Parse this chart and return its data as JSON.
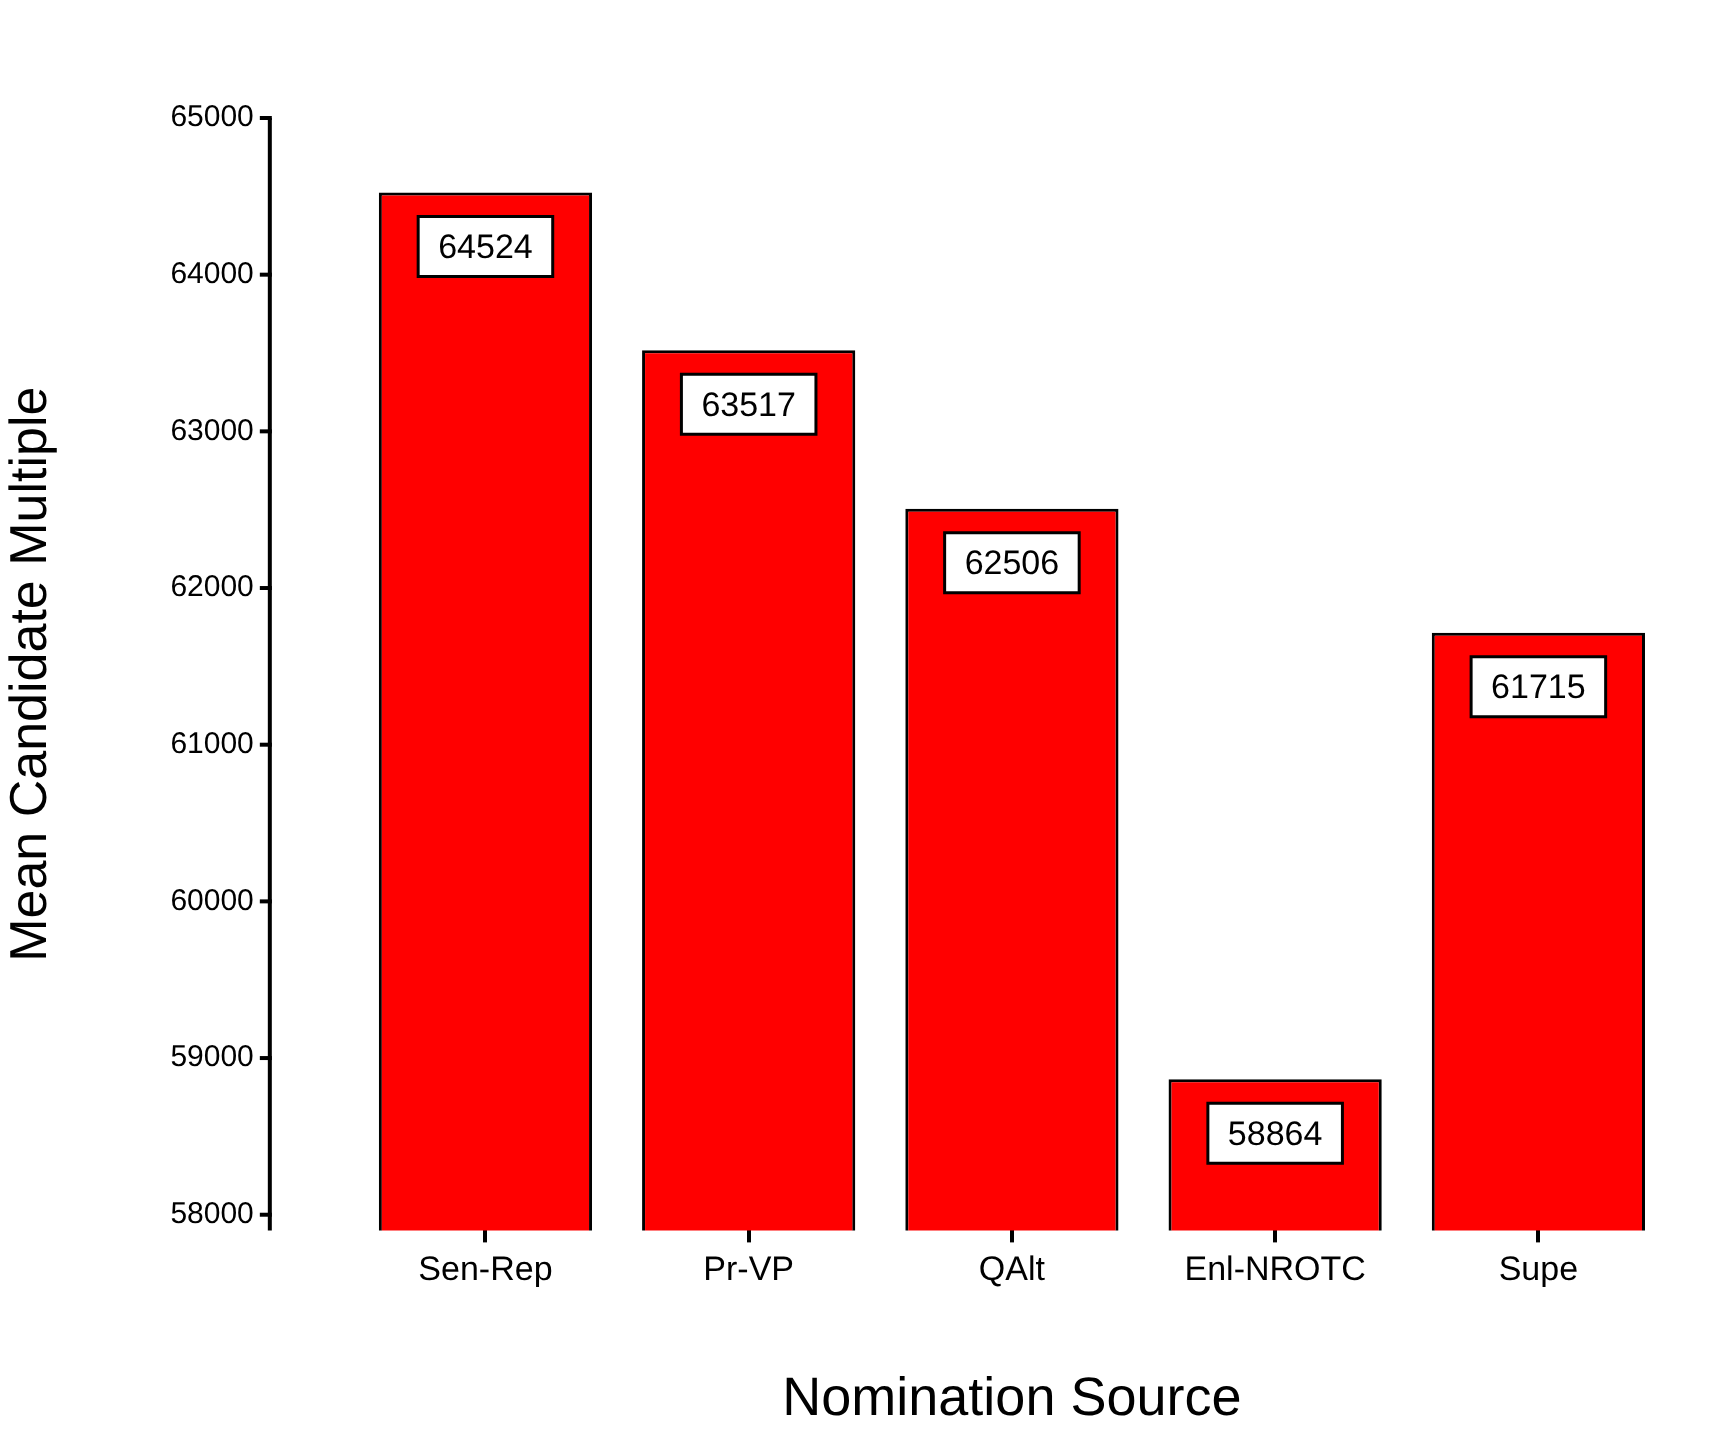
{
  "chart_data": {
    "type": "bar",
    "xlabel": "Nomination Source",
    "ylabel": "Mean Candidate Multiple",
    "categories": [
      "Sen-Rep",
      "Pr-VP",
      "QAlt",
      "Enl-NROTC",
      "Supe"
    ],
    "values": [
      64524,
      63517,
      62506,
      58864,
      61715
    ],
    "color": "#ff0000",
    "ylim": [
      57900,
      65000
    ],
    "yticks": [
      58000,
      59000,
      60000,
      61000,
      62000,
      63000,
      64000,
      65000
    ],
    "grid": false,
    "legend": false,
    "data_labels": true
  }
}
